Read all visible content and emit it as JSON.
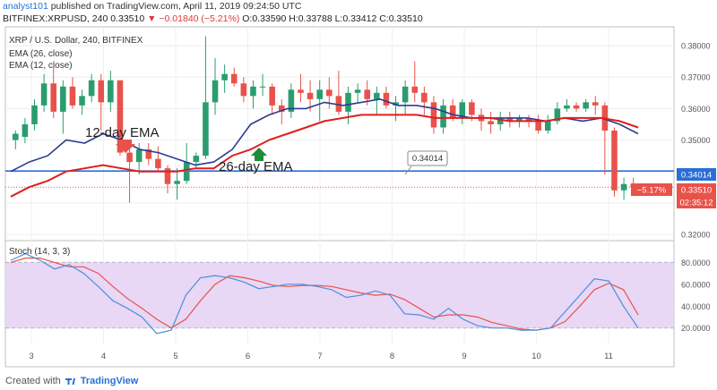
{
  "header": {
    "author": "analyst101",
    "published_text": "published on TradingView.com, April 11, 2019 09:24:50 UTC",
    "symbol_line": "BITFINEX:XRPUSD, 240",
    "last": "0.33510",
    "change": "▼ −0.01840 (−5.21%)",
    "ohlc": "O:0.33590 H:0.33788 L:0.33412 C:0.33510"
  },
  "footer": {
    "prefix": "Created with",
    "brand": "TradingView"
  },
  "colors": {
    "up": "#2a9d6e",
    "down": "#e8524a",
    "ema12": "#2b3b8f",
    "ema26": "#e01e1e",
    "stoch_k": "#4a90d9",
    "stoch_d": "#e8524a",
    "stoch_band": "#e5d0f5",
    "price_line": "#2a6fd6"
  },
  "chart_data": [
    {
      "type": "candlestick",
      "title": "XRP / U.S. Dollar, 240, BITFINEX",
      "legend": [
        "EMA (26, close)",
        "EMA (12, close)"
      ],
      "x_ticks": [
        "3",
        "4",
        "5",
        "6",
        "7",
        "8",
        "9",
        "10",
        "11"
      ],
      "ylim": [
        0.318,
        0.386
      ],
      "y_ticks": [
        "0.38000",
        "0.37000",
        "0.36000",
        "0.35000",
        "0.34000",
        "0.33000",
        "0.32000"
      ],
      "candles": [
        [
          0.35,
          0.353,
          0.347,
          0.352
        ],
        [
          0.351,
          0.357,
          0.349,
          0.355
        ],
        [
          0.355,
          0.363,
          0.353,
          0.361
        ],
        [
          0.361,
          0.371,
          0.359,
          0.368
        ],
        [
          0.368,
          0.373,
          0.357,
          0.359
        ],
        [
          0.359,
          0.369,
          0.352,
          0.367
        ],
        [
          0.367,
          0.37,
          0.36,
          0.361
        ],
        [
          0.361,
          0.366,
          0.358,
          0.364
        ],
        [
          0.364,
          0.371,
          0.362,
          0.369
        ],
        [
          0.369,
          0.371,
          0.353,
          0.362
        ],
        [
          0.362,
          0.372,
          0.359,
          0.369
        ],
        [
          0.369,
          0.369,
          0.345,
          0.346
        ],
        [
          0.346,
          0.348,
          0.33,
          0.343
        ],
        [
          0.343,
          0.349,
          0.339,
          0.347
        ],
        [
          0.347,
          0.349,
          0.342,
          0.344
        ],
        [
          0.344,
          0.348,
          0.34,
          0.341
        ],
        [
          0.341,
          0.342,
          0.333,
          0.336
        ],
        [
          0.336,
          0.341,
          0.331,
          0.337
        ],
        [
          0.337,
          0.349,
          0.336,
          0.343
        ],
        [
          0.343,
          0.346,
          0.341,
          0.345
        ],
        [
          0.345,
          0.383,
          0.344,
          0.362
        ],
        [
          0.362,
          0.376,
          0.358,
          0.369
        ],
        [
          0.369,
          0.374,
          0.365,
          0.371
        ],
        [
          0.371,
          0.373,
          0.367,
          0.368
        ],
        [
          0.368,
          0.37,
          0.362,
          0.364
        ],
        [
          0.364,
          0.369,
          0.36,
          0.367
        ],
        [
          0.367,
          0.371,
          0.364,
          0.367
        ],
        [
          0.367,
          0.368,
          0.358,
          0.361
        ],
        [
          0.361,
          0.363,
          0.355,
          0.359
        ],
        [
          0.359,
          0.368,
          0.357,
          0.366
        ],
        [
          0.366,
          0.371,
          0.362,
          0.365
        ],
        [
          0.365,
          0.369,
          0.359,
          0.363
        ],
        [
          0.363,
          0.369,
          0.356,
          0.366
        ],
        [
          0.366,
          0.37,
          0.36,
          0.364
        ],
        [
          0.364,
          0.372,
          0.358,
          0.359
        ],
        [
          0.359,
          0.367,
          0.355,
          0.365
        ],
        [
          0.365,
          0.368,
          0.362,
          0.366
        ],
        [
          0.366,
          0.369,
          0.361,
          0.363
        ],
        [
          0.363,
          0.367,
          0.358,
          0.365
        ],
        [
          0.365,
          0.367,
          0.36,
          0.361
        ],
        [
          0.361,
          0.364,
          0.356,
          0.362
        ],
        [
          0.362,
          0.369,
          0.358,
          0.367
        ],
        [
          0.367,
          0.375,
          0.362,
          0.365
        ],
        [
          0.365,
          0.367,
          0.358,
          0.362
        ],
        [
          0.362,
          0.364,
          0.352,
          0.354
        ],
        [
          0.354,
          0.363,
          0.352,
          0.361
        ],
        [
          0.361,
          0.363,
          0.356,
          0.357
        ],
        [
          0.357,
          0.363,
          0.355,
          0.362
        ],
        [
          0.362,
          0.363,
          0.356,
          0.358
        ],
        [
          0.358,
          0.36,
          0.353,
          0.356
        ],
        [
          0.356,
          0.359,
          0.352,
          0.355
        ],
        [
          0.355,
          0.359,
          0.353,
          0.357
        ],
        [
          0.357,
          0.359,
          0.354,
          0.356
        ],
        [
          0.356,
          0.358,
          0.354,
          0.357
        ],
        [
          0.357,
          0.358,
          0.354,
          0.356
        ],
        [
          0.356,
          0.358,
          0.352,
          0.353
        ],
        [
          0.353,
          0.358,
          0.352,
          0.356
        ],
        [
          0.356,
          0.362,
          0.355,
          0.36
        ],
        [
          0.36,
          0.363,
          0.359,
          0.361
        ],
        [
          0.361,
          0.362,
          0.359,
          0.36
        ],
        [
          0.36,
          0.363,
          0.359,
          0.362
        ],
        [
          0.362,
          0.364,
          0.358,
          0.361
        ],
        [
          0.361,
          0.362,
          0.339,
          0.353
        ],
        [
          0.353,
          0.354,
          0.332,
          0.334
        ],
        [
          0.334,
          0.338,
          0.331,
          0.336
        ],
        [
          0.336,
          0.338,
          0.334,
          0.335
        ]
      ],
      "series": [
        {
          "name": "EMA (12, close)",
          "values": [
            0.34,
            0.343,
            0.345,
            0.35,
            0.349,
            0.352,
            0.35,
            0.347,
            0.346,
            0.344,
            0.342,
            0.343,
            0.347,
            0.355,
            0.358,
            0.36,
            0.36,
            0.362,
            0.361,
            0.362,
            0.363,
            0.361,
            0.361,
            0.36,
            0.358,
            0.357,
            0.357,
            0.357,
            0.357,
            0.356,
            0.357,
            0.356,
            0.357,
            0.355,
            0.352
          ]
        },
        {
          "name": "EMA (26, close)",
          "values": [
            0.332,
            0.335,
            0.337,
            0.34,
            0.341,
            0.342,
            0.341,
            0.34,
            0.34,
            0.34,
            0.341,
            0.341,
            0.345,
            0.347,
            0.35,
            0.352,
            0.354,
            0.356,
            0.357,
            0.358,
            0.358,
            0.358,
            0.358,
            0.357,
            0.357,
            0.357,
            0.357,
            0.356,
            0.356,
            0.356,
            0.357,
            0.357,
            0.357,
            0.356,
            0.354
          ]
        }
      ],
      "price_line": {
        "value": 0.34014,
        "label": "0.34014"
      },
      "annotations": [
        {
          "text": "12-day EMA",
          "marker": "down-arrow"
        },
        {
          "text": "26-day EMA",
          "marker": "up-arrow"
        },
        {
          "text": "0.34014",
          "type": "callout"
        }
      ],
      "axis_badges": {
        "level": "0.34014",
        "change": "−5.17%",
        "last": "0.33510",
        "countdown": "02:35:12"
      }
    },
    {
      "type": "line",
      "title": "Stoch (14, 3, 3)",
      "ylim": [
        5,
        100
      ],
      "y_ticks": [
        "80.0000",
        "60.0000",
        "40.0000",
        "20.0000"
      ],
      "band": [
        20,
        80
      ],
      "series": [
        {
          "name": "%K",
          "values": [
            82,
            88,
            82,
            74,
            78,
            70,
            58,
            45,
            38,
            30,
            15,
            18,
            50,
            66,
            68,
            66,
            62,
            56,
            58,
            60,
            60,
            58,
            55,
            48,
            50,
            54,
            50,
            33,
            32,
            28,
            38,
            28,
            22,
            20,
            20,
            18,
            18,
            20,
            35,
            50,
            65,
            63,
            40,
            20
          ]
        },
        {
          "name": "%D",
          "values": [
            80,
            84,
            84,
            80,
            76,
            76,
            70,
            58,
            47,
            38,
            28,
            20,
            28,
            45,
            60,
            68,
            66,
            63,
            59,
            58,
            59,
            59,
            58,
            55,
            52,
            50,
            51,
            46,
            38,
            30,
            32,
            32,
            30,
            25,
            22,
            19,
            18,
            20,
            26,
            40,
            55,
            61,
            55,
            32
          ]
        }
      ]
    }
  ]
}
